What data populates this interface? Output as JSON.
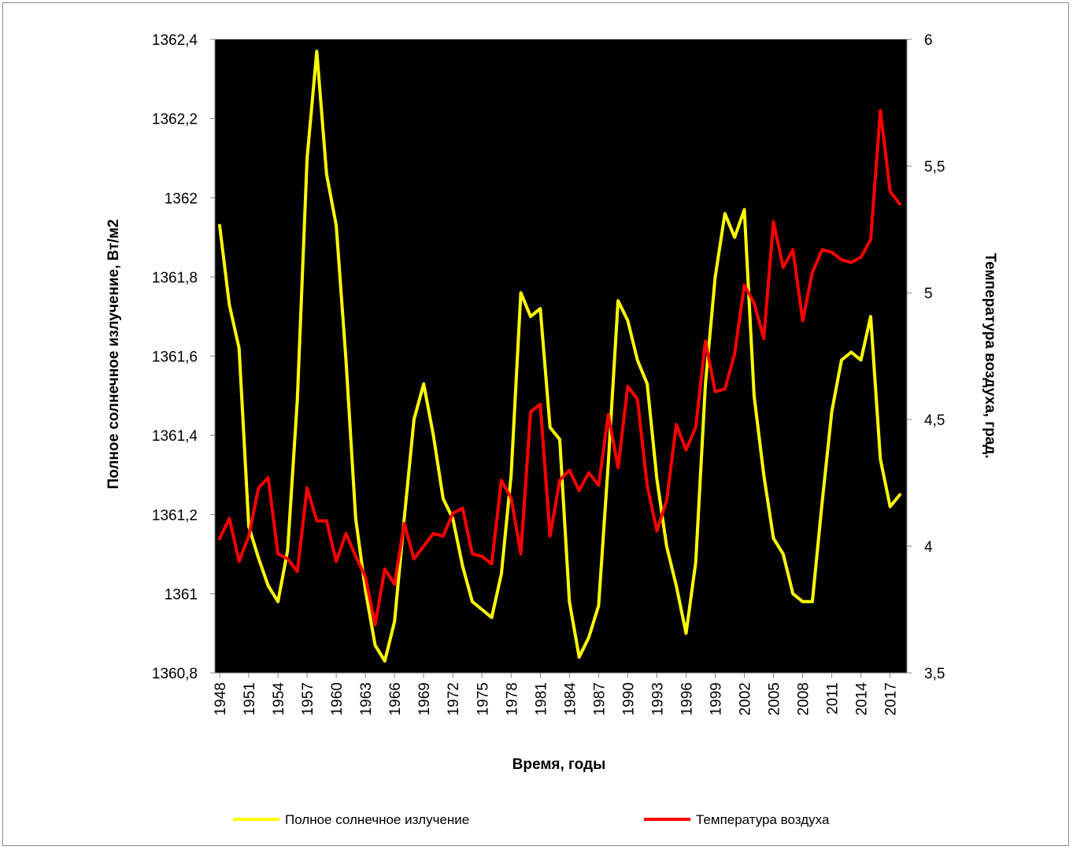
{
  "chart_data": {
    "type": "line",
    "xlabel": "Время, годы",
    "ylabel_left": "Полное солнечное излучение, Вт/м2",
    "ylabel_right": "Температура воздуха, град.",
    "x_tick_labels": [
      "1948",
      "1951",
      "1954",
      "1957",
      "1960",
      "1963",
      "1966",
      "1969",
      "1972",
      "1975",
      "1978",
      "1981",
      "1984",
      "1987",
      "1990",
      "1993",
      "1996",
      "1999",
      "2002",
      "2005",
      "2008",
      "2011",
      "2014",
      "2017"
    ],
    "y_left_ticks": [
      "1360,8",
      "1361",
      "1361,2",
      "1361,4",
      "1361,6",
      "1361,8",
      "1362",
      "1362,2",
      "1362,4"
    ],
    "y_left_tick_values": [
      1360.8,
      1361.0,
      1361.2,
      1361.4,
      1361.6,
      1361.8,
      1362.0,
      1362.2,
      1362.4
    ],
    "y_right_ticks": [
      "3,5",
      "4",
      "4,5",
      "5",
      "5,5",
      "6"
    ],
    "y_right_tick_values": [
      3.5,
      4.0,
      4.5,
      5.0,
      5.5,
      6.0
    ],
    "ylim_left": [
      1360.8,
      1362.4
    ],
    "ylim_right": [
      3.5,
      6.0
    ],
    "x": [
      1948,
      1949,
      1950,
      1951,
      1952,
      1953,
      1954,
      1955,
      1956,
      1957,
      1958,
      1959,
      1960,
      1961,
      1962,
      1963,
      1964,
      1965,
      1966,
      1967,
      1968,
      1969,
      1970,
      1971,
      1972,
      1973,
      1974,
      1975,
      1976,
      1977,
      1978,
      1979,
      1980,
      1981,
      1982,
      1983,
      1984,
      1985,
      1986,
      1987,
      1988,
      1989,
      1990,
      1991,
      1992,
      1993,
      1994,
      1995,
      1996,
      1997,
      1998,
      1999,
      2000,
      2001,
      2002,
      2003,
      2004,
      2005,
      2006,
      2007,
      2008,
      2009,
      2010,
      2011,
      2012,
      2013,
      2014,
      2015,
      2016,
      2017,
      2018
    ],
    "background": "#000000",
    "grid": false,
    "legend_position": "bottom",
    "series": [
      {
        "name": "Полное солнечное излучение",
        "axis": "left",
        "color": "#ffff00",
        "values": [
          1361.93,
          1361.73,
          1361.62,
          1361.17,
          1361.09,
          1361.02,
          1360.98,
          1361.11,
          1361.49,
          1362.1,
          1362.37,
          1362.06,
          1361.93,
          1361.59,
          1361.19,
          1361.01,
          1360.87,
          1360.83,
          1360.93,
          1361.19,
          1361.44,
          1361.53,
          1361.4,
          1361.24,
          1361.19,
          1361.07,
          1360.98,
          1360.96,
          1360.94,
          1361.05,
          1361.3,
          1361.76,
          1361.7,
          1361.72,
          1361.42,
          1361.39,
          1360.98,
          1360.84,
          1360.89,
          1360.97,
          1361.33,
          1361.74,
          1361.69,
          1361.59,
          1361.53,
          1361.29,
          1361.12,
          1361.02,
          1360.9,
          1361.08,
          1361.53,
          1361.8,
          1361.96,
          1361.9,
          1361.97,
          1361.5,
          1361.3,
          1361.14,
          1361.1,
          1361.0,
          1360.98,
          1360.98,
          1361.23,
          1361.46,
          1361.59,
          1361.61,
          1361.59,
          1361.7,
          1361.34,
          1361.22,
          1361.25
        ]
      },
      {
        "name": "Температура воздуха",
        "axis": "right",
        "color": "#ff0000",
        "values": [
          4.03,
          4.11,
          3.94,
          4.04,
          4.23,
          4.27,
          3.97,
          3.95,
          3.9,
          4.23,
          4.1,
          4.1,
          3.94,
          4.05,
          3.96,
          3.88,
          3.69,
          3.91,
          3.85,
          4.09,
          3.95,
          4.0,
          4.05,
          4.04,
          4.13,
          4.15,
          3.97,
          3.96,
          3.93,
          4.26,
          4.19,
          3.97,
          4.53,
          4.56,
          4.04,
          4.26,
          4.3,
          4.22,
          4.29,
          4.24,
          4.52,
          4.31,
          4.63,
          4.58,
          4.24,
          4.06,
          4.18,
          4.48,
          4.38,
          4.47,
          4.81,
          4.61,
          4.62,
          4.76,
          5.03,
          4.96,
          4.82,
          5.28,
          5.1,
          5.17,
          4.89,
          5.08,
          5.17,
          5.16,
          5.13,
          5.12,
          5.14,
          5.21,
          5.72,
          5.4,
          5.35
        ]
      }
    ]
  }
}
